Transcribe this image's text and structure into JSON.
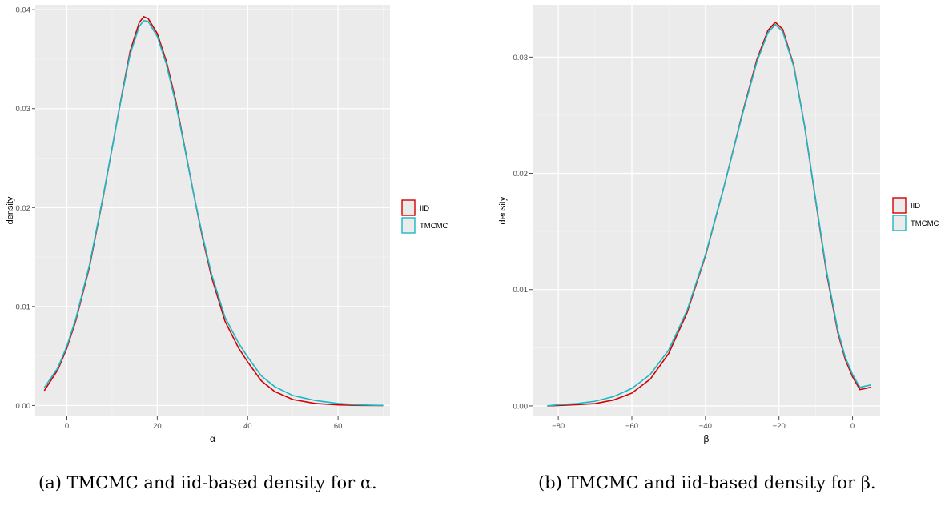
{
  "chart_data": [
    {
      "type": "line",
      "panel": "a",
      "xlabel": "α",
      "ylabel": "density",
      "xlim": [
        -7,
        71.5
      ],
      "ylim": [
        -0.0011,
        0.0405
      ],
      "xticks": [
        0,
        20,
        40,
        60
      ],
      "xtick_labels": [
        "0",
        "20",
        "40",
        "60"
      ],
      "yticks": [
        0.0,
        0.01,
        0.02,
        0.03,
        0.04
      ],
      "ytick_labels": [
        "0.00",
        "0.01",
        "0.02",
        "0.03",
        "0.04"
      ],
      "grid": true,
      "legend": "right",
      "series": [
        {
          "name": "IID",
          "color": "#d50000",
          "x": [
            -5,
            -2,
            0,
            2,
            5,
            8,
            10,
            12,
            14,
            16,
            17,
            18,
            20,
            22,
            24,
            26,
            28,
            30,
            32,
            35,
            38,
            40,
            43,
            46,
            50,
            55,
            60,
            65,
            70
          ],
          "y": [
            0.0015,
            0.0036,
            0.0058,
            0.0086,
            0.014,
            0.021,
            0.026,
            0.031,
            0.0358,
            0.0387,
            0.0393,
            0.0391,
            0.0376,
            0.0348,
            0.031,
            0.0263,
            0.0215,
            0.017,
            0.013,
            0.0085,
            0.0058,
            0.0044,
            0.0025,
            0.0014,
            0.0006,
            0.0002,
            6e-05,
            1e-05,
            0.0
          ]
        },
        {
          "name": "TMCMC",
          "color": "#1ab8c4",
          "x": [
            -5,
            -2,
            0,
            2,
            5,
            8,
            10,
            12,
            14,
            16,
            17,
            18,
            20,
            22,
            24,
            26,
            28,
            30,
            32,
            35,
            38,
            40,
            43,
            46,
            50,
            55,
            60,
            65,
            70
          ],
          "y": [
            0.0018,
            0.0038,
            0.006,
            0.0088,
            0.0142,
            0.0211,
            0.026,
            0.0309,
            0.0355,
            0.0383,
            0.0389,
            0.0388,
            0.0373,
            0.0345,
            0.0307,
            0.0262,
            0.0215,
            0.0172,
            0.0133,
            0.0089,
            0.0063,
            0.0049,
            0.003,
            0.0019,
            0.001,
            0.0005,
            0.0002,
            6e-05,
            0.0
          ]
        }
      ]
    },
    {
      "type": "line",
      "panel": "b",
      "xlabel": "β",
      "ylabel": "density",
      "xlim": [
        -87,
        7.5
      ],
      "ylim": [
        -0.0009,
        0.0345
      ],
      "xticks": [
        -80,
        -60,
        -40,
        -20,
        0
      ],
      "xtick_labels": [
        "−80",
        "−60",
        "−40",
        "−20",
        "0"
      ],
      "yticks": [
        0.0,
        0.01,
        0.02,
        0.03
      ],
      "ytick_labels": [
        "0.00",
        "0.01",
        "0.02",
        "0.03"
      ],
      "grid": true,
      "legend": "right",
      "series": [
        {
          "name": "IID",
          "color": "#d50000",
          "x": [
            -83,
            -80,
            -75,
            -70,
            -65,
            -60,
            -55,
            -50,
            -45,
            -40,
            -35,
            -30,
            -26,
            -23,
            -21,
            -19,
            -16,
            -13,
            -10,
            -7,
            -4,
            -2,
            0,
            2,
            5
          ],
          "y": [
            0.0,
            3e-05,
            0.0001,
            0.0002,
            0.0005,
            0.0011,
            0.0023,
            0.0045,
            0.008,
            0.0129,
            0.0188,
            0.0251,
            0.0298,
            0.0323,
            0.033,
            0.0324,
            0.0293,
            0.024,
            0.0176,
            0.0113,
            0.0063,
            0.004,
            0.0025,
            0.0014,
            0.0016
          ]
        },
        {
          "name": "TMCMC",
          "color": "#1ab8c4",
          "x": [
            -83,
            -80,
            -75,
            -70,
            -65,
            -60,
            -55,
            -50,
            -45,
            -40,
            -35,
            -30,
            -26,
            -23,
            -21,
            -19,
            -16,
            -13,
            -10,
            -7,
            -4,
            -2,
            0,
            2,
            5
          ],
          "y": [
            0.0,
            0.0001,
            0.0002,
            0.0004,
            0.0008,
            0.0015,
            0.0027,
            0.0048,
            0.0082,
            0.013,
            0.0188,
            0.025,
            0.0296,
            0.0321,
            0.0328,
            0.0322,
            0.0292,
            0.024,
            0.0177,
            0.0115,
            0.0065,
            0.0042,
            0.0027,
            0.0016,
            0.0018
          ]
        }
      ]
    }
  ],
  "captions": {
    "a": "(a) TMCMC and iid-based density for α.",
    "b": "(b) TMCMC and iid-based density for β."
  }
}
